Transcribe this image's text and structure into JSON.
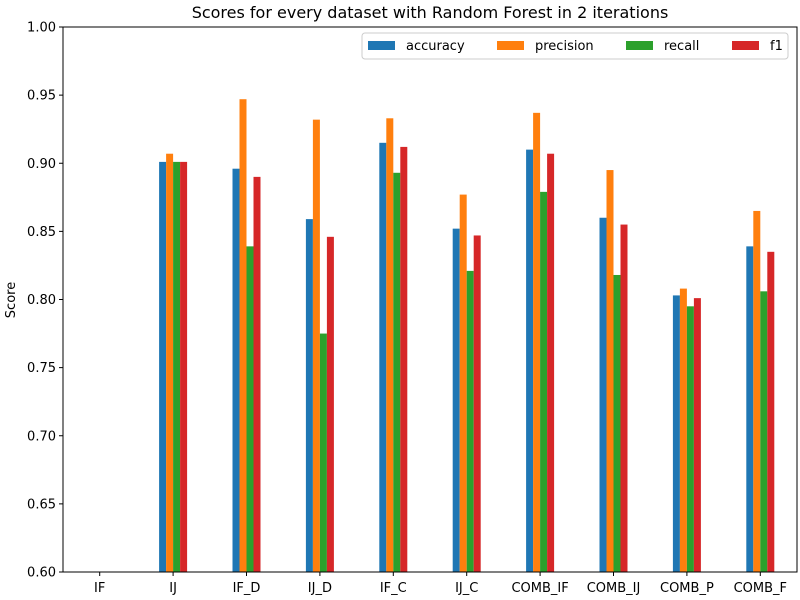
{
  "chart_data": {
    "type": "bar",
    "title": "Scores for every dataset with Random Forest in 2 iterations",
    "xlabel": "",
    "ylabel": "Score",
    "ylim": [
      0.6,
      1.0
    ],
    "yticks": [
      "0.60",
      "0.65",
      "0.70",
      "0.75",
      "0.80",
      "0.85",
      "0.90",
      "0.95",
      "1.00"
    ],
    "categories": [
      "IF",
      "IJ",
      "IF_D",
      "IJ_D",
      "IF_C",
      "IJ_C",
      "COMB_IF",
      "COMB_IJ",
      "COMB_P",
      "COMB_F"
    ],
    "series": [
      {
        "name": "accuracy",
        "color": "#1f77b4",
        "values": [
          null,
          0.901,
          0.896,
          0.859,
          0.915,
          0.852,
          0.91,
          0.86,
          0.803,
          0.839
        ]
      },
      {
        "name": "precision",
        "color": "#ff7f0e",
        "values": [
          null,
          0.907,
          0.947,
          0.932,
          0.933,
          0.877,
          0.937,
          0.895,
          0.808,
          0.865
        ]
      },
      {
        "name": "recall",
        "color": "#2ca02c",
        "values": [
          null,
          0.901,
          0.839,
          0.775,
          0.893,
          0.821,
          0.879,
          0.818,
          0.795,
          0.806
        ]
      },
      {
        "name": "f1",
        "color": "#d62728",
        "values": [
          null,
          0.901,
          0.89,
          0.846,
          0.912,
          0.847,
          0.907,
          0.855,
          0.801,
          0.835
        ]
      }
    ],
    "grid": false,
    "legend_position": "top-right"
  }
}
